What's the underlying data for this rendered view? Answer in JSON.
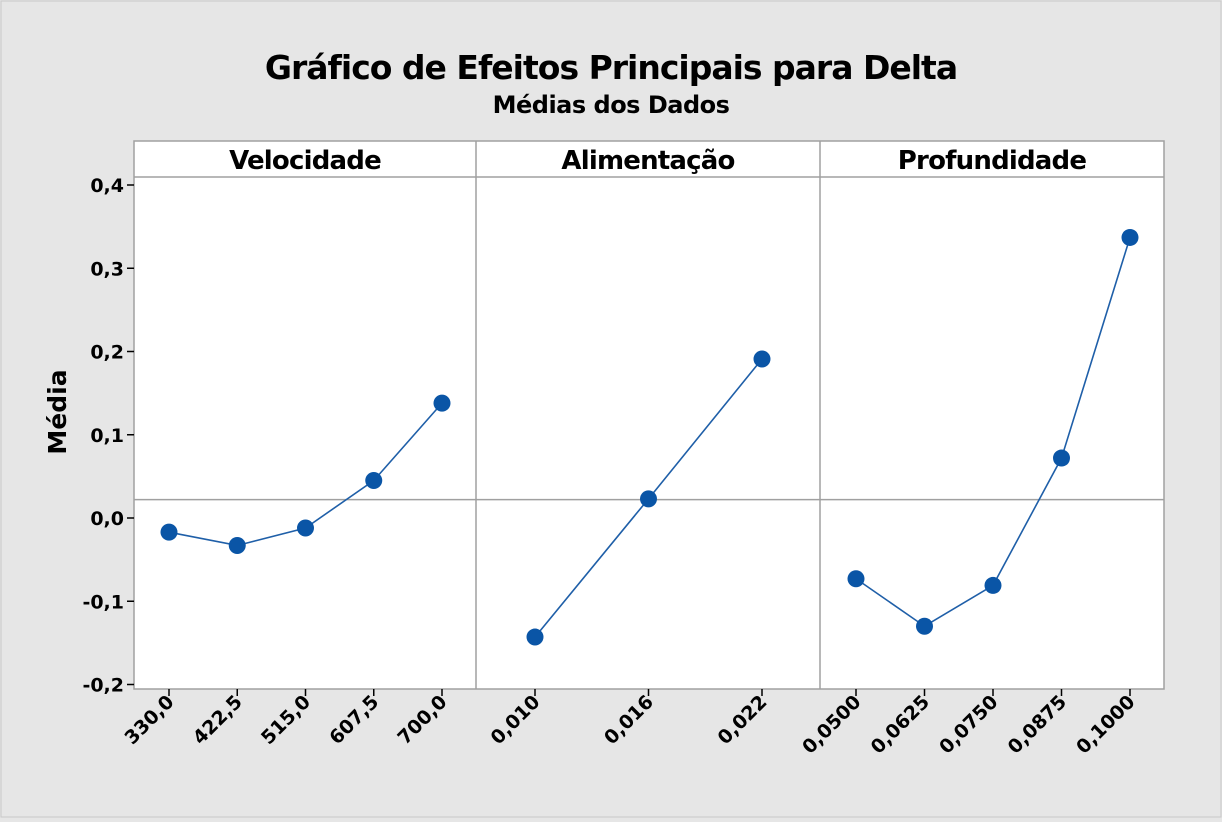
{
  "chart_data": {
    "type": "line",
    "title": "Gráfico de Efeitos Principais para Delta",
    "subtitle": "Médias dos Dados",
    "ylabel": "Média",
    "ylim": [
      -0.2,
      0.41
    ],
    "yticks": [
      0.4,
      0.3,
      0.2,
      0.1,
      0.0,
      -0.1,
      -0.2
    ],
    "ytick_labels": [
      "0,4",
      "0,3",
      "0,2",
      "0,1",
      "0,0",
      "-0,1",
      "-0,2"
    ],
    "reference_line": 0.022,
    "grid": false,
    "series_color": "#1f5fa8",
    "marker_color": "#0a55a6",
    "panels": [
      {
        "label": "Velocidade",
        "x_labels": [
          "330,0",
          "422,5",
          "515,0",
          "607,5",
          "700,0"
        ],
        "values": [
          -0.017,
          -0.033,
          -0.012,
          0.045,
          0.138
        ]
      },
      {
        "label": "Alimentação",
        "x_labels": [
          "0,010",
          "0,016",
          "0,022"
        ],
        "values": [
          -0.143,
          0.023,
          0.191
        ]
      },
      {
        "label": "Profundidade",
        "x_labels": [
          "0,0500",
          "0,0625",
          "0,0750",
          "0,0875",
          "0,1000"
        ],
        "values": [
          -0.073,
          -0.13,
          -0.081,
          0.072,
          0.337
        ]
      }
    ]
  }
}
